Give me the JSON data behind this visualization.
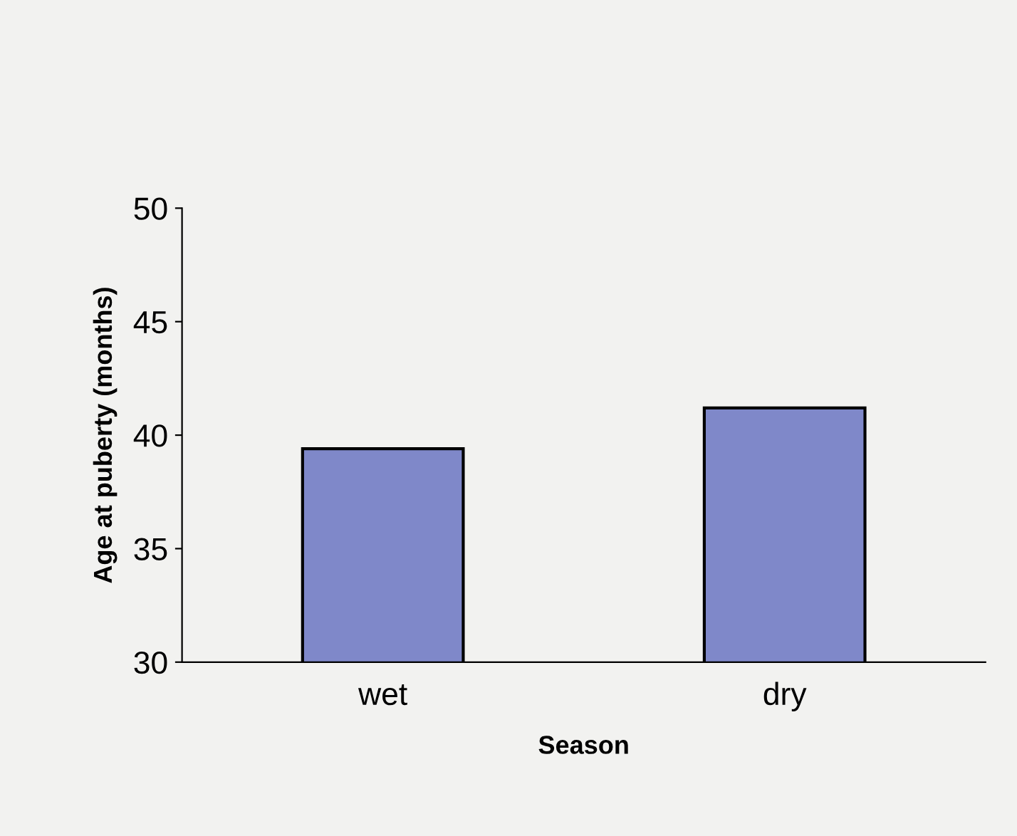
{
  "chart_data": {
    "type": "bar",
    "xlabel": "Season",
    "ylabel": "Age at puberty (months)",
    "categories": [
      "wet",
      "dry"
    ],
    "values": [
      39.4,
      41.2
    ],
    "color": "#7f88c9",
    "ylim": [
      30,
      50
    ],
    "yticks": [
      30,
      35,
      40,
      45,
      50
    ],
    "grid": false,
    "legend": false
  }
}
